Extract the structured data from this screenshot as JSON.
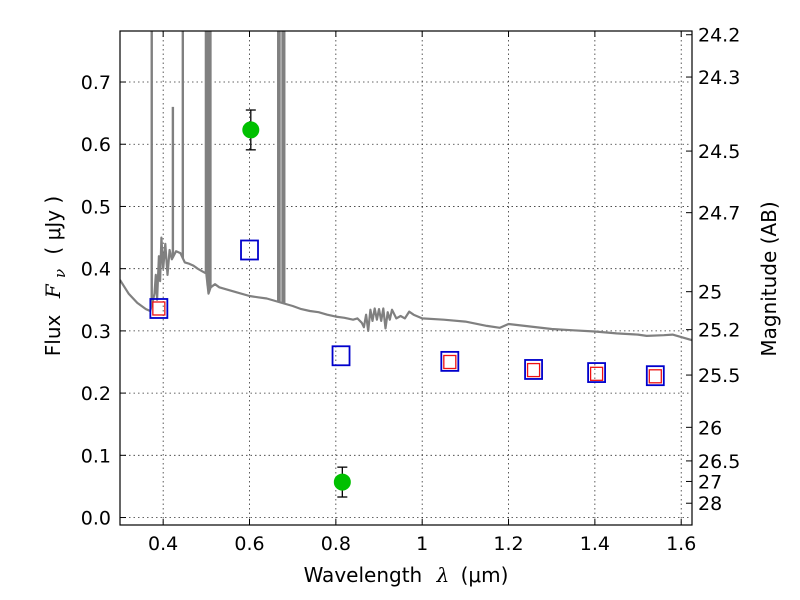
{
  "chart_data": {
    "type": "scatter",
    "xlabel": {
      "prefix": "Wavelength",
      "symbol": "λ",
      "unit": "(μm)"
    },
    "ylabel": {
      "prefix": "Flux",
      "symbol": "F",
      "subscript": "ν",
      "unit": "( μJy )"
    },
    "y2label": "Magnitude (AB)",
    "xlim": [
      0.3,
      1.625
    ],
    "ylim": [
      -0.012,
      0.782
    ],
    "grid": true,
    "x_ticks": [
      0.4,
      0.6,
      0.8,
      1.0,
      1.2,
      1.4,
      1.6
    ],
    "x_tick_labels": [
      "0.4",
      "0.6",
      "0.8",
      "1",
      "1.2",
      "1.4",
      "1.6"
    ],
    "y_ticks": [
      0.0,
      0.1,
      0.2,
      0.3,
      0.4,
      0.5,
      0.6,
      0.7
    ],
    "y_tick_labels": [
      "0.0",
      "0.1",
      "0.2",
      "0.3",
      "0.4",
      "0.5",
      "0.6",
      "0.7"
    ],
    "mag_ticks": [
      {
        "label": "24.2",
        "flux": 0.776
      },
      {
        "label": "24.3",
        "flux": 0.708
      },
      {
        "label": "24.5",
        "flux": 0.589
      },
      {
        "label": "24.7",
        "flux": 0.49
      },
      {
        "label": "25",
        "flux": 0.363
      },
      {
        "label": "25.2",
        "flux": 0.302
      },
      {
        "label": "25.5",
        "flux": 0.229
      },
      {
        "label": "26",
        "flux": 0.145
      },
      {
        "label": "26.5",
        "flux": 0.091
      },
      {
        "label": "27",
        "flux": 0.058
      },
      {
        "label": "28",
        "flux": 0.023
      }
    ],
    "series": [
      {
        "name": "model_spectrum",
        "type": "line",
        "color": "#808080",
        "points": [
          [
            0.3,
            0.382
          ],
          [
            0.32,
            0.36
          ],
          [
            0.34,
            0.345
          ],
          [
            0.36,
            0.335
          ],
          [
            0.37,
            0.332
          ],
          [
            0.375,
            0.345
          ],
          [
            0.38,
            0.36
          ],
          [
            0.383,
            0.39
          ],
          [
            0.386,
            0.35
          ],
          [
            0.39,
            0.42
          ],
          [
            0.393,
            0.38
          ],
          [
            0.396,
            0.45
          ],
          [
            0.4,
            0.4
          ],
          [
            0.405,
            0.44
          ],
          [
            0.41,
            0.39
          ],
          [
            0.415,
            0.43
          ],
          [
            0.42,
            0.415
          ],
          [
            0.43,
            0.428
          ],
          [
            0.44,
            0.425
          ],
          [
            0.45,
            0.41
          ],
          [
            0.46,
            0.408
          ],
          [
            0.47,
            0.405
          ],
          [
            0.48,
            0.4
          ],
          [
            0.49,
            0.396
          ],
          [
            0.5,
            0.392
          ],
          [
            0.505,
            0.36
          ],
          [
            0.51,
            0.37
          ],
          [
            0.52,
            0.375
          ],
          [
            0.53,
            0.37
          ],
          [
            0.55,
            0.366
          ],
          [
            0.57,
            0.362
          ],
          [
            0.6,
            0.356
          ],
          [
            0.62,
            0.354
          ],
          [
            0.64,
            0.352
          ],
          [
            0.66,
            0.348
          ],
          [
            0.68,
            0.344
          ],
          [
            0.7,
            0.34
          ],
          [
            0.72,
            0.335
          ],
          [
            0.74,
            0.332
          ],
          [
            0.76,
            0.33
          ],
          [
            0.78,
            0.326
          ],
          [
            0.8,
            0.323
          ],
          [
            0.82,
            0.321
          ],
          [
            0.84,
            0.318
          ],
          [
            0.85,
            0.32
          ],
          [
            0.86,
            0.313
          ],
          [
            0.865,
            0.306
          ],
          [
            0.87,
            0.326
          ],
          [
            0.875,
            0.3
          ],
          [
            0.88,
            0.334
          ],
          [
            0.885,
            0.316
          ],
          [
            0.89,
            0.336
          ],
          [
            0.895,
            0.318
          ],
          [
            0.9,
            0.335
          ],
          [
            0.905,
            0.316
          ],
          [
            0.91,
            0.336
          ],
          [
            0.915,
            0.304
          ],
          [
            0.92,
            0.33
          ],
          [
            0.925,
            0.318
          ],
          [
            0.93,
            0.334
          ],
          [
            0.94,
            0.32
          ],
          [
            0.95,
            0.324
          ],
          [
            0.96,
            0.32
          ],
          [
            0.97,
            0.331
          ],
          [
            0.98,
            0.326
          ],
          [
            1.0,
            0.32
          ],
          [
            1.05,
            0.318
          ],
          [
            1.1,
            0.315
          ],
          [
            1.15,
            0.308
          ],
          [
            1.18,
            0.305
          ],
          [
            1.2,
            0.311
          ],
          [
            1.25,
            0.307
          ],
          [
            1.3,
            0.303
          ],
          [
            1.35,
            0.301
          ],
          [
            1.4,
            0.299
          ],
          [
            1.45,
            0.296
          ],
          [
            1.5,
            0.294
          ],
          [
            1.52,
            0.292
          ],
          [
            1.56,
            0.293
          ],
          [
            1.58,
            0.294
          ],
          [
            1.6,
            0.29
          ],
          [
            1.625,
            0.285
          ]
        ],
        "emission_lines": [
          0.3735,
          0.4225,
          0.4455,
          0.499,
          0.503,
          0.5065,
          0.5095,
          0.6665,
          0.6695,
          0.6765,
          0.6805
        ]
      },
      {
        "name": "photometry_blue",
        "type": "scatter",
        "marker": "open-square",
        "color": "#0000cc",
        "x": [
          0.39,
          0.6,
          0.812,
          1.064,
          1.258,
          1.404,
          1.54
        ],
        "y": [
          0.336,
          0.43,
          0.26,
          0.251,
          0.238,
          0.233,
          0.228
        ]
      },
      {
        "name": "photometry_red",
        "type": "scatter",
        "marker": "open-square-small",
        "color": "#ee1111",
        "x": [
          0.39,
          1.064,
          1.258,
          1.404,
          1.54
        ],
        "y": [
          0.336,
          0.25,
          0.237,
          0.231,
          0.227
        ]
      },
      {
        "name": "photometry_green",
        "type": "scatter",
        "marker": "filled-circle",
        "color": "#00c000",
        "x": [
          0.603,
          0.815
        ],
        "y": [
          0.623,
          0.057
        ],
        "yerr": [
          0.032,
          0.024
        ]
      }
    ]
  }
}
